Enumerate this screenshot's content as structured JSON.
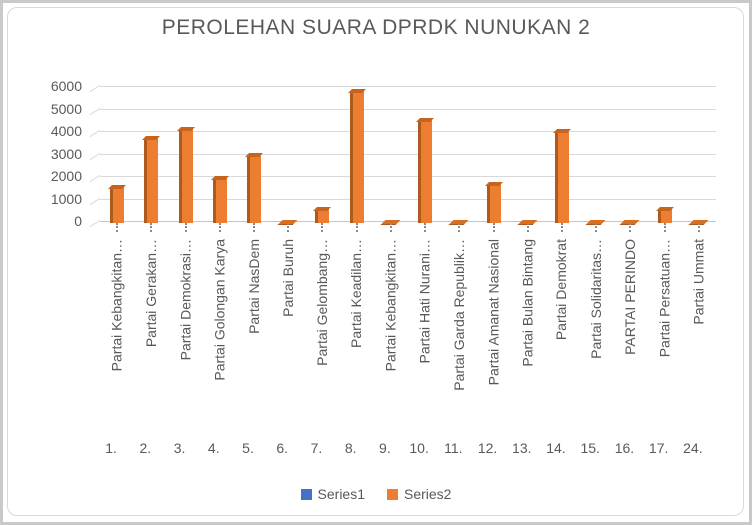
{
  "chart": {
    "title": "PEROLEHAN SUARA DPRDK NUNUKAN 2"
  },
  "chart_data": {
    "type": "bar",
    "title": "PEROLEHAN SUARA DPRDK NUNUKAN 2",
    "categories": [
      "Partai Kebangkitan…",
      "Partai Gerakan…",
      "Partai Demokrasi…",
      "Partai Golongan Karya",
      "Partai NasDem",
      "Partai Buruh",
      "Partai Gelombang…",
      "Partai Keadilan…",
      "Partai Kebangkitan…",
      "Partai Hati Nurani…",
      "Partai Garda Republik…",
      "Partai Amanat Nasional",
      "Partai Bulan Bintang",
      "Partai Demokrat",
      "Partai Solidaritas…",
      "PARTAI PERINDO",
      "Partai Persatuan…",
      "Partai Ummat"
    ],
    "category_numbers": [
      "1.",
      "2.",
      "3.",
      "4.",
      "5.",
      "6.",
      "7.",
      "8.",
      "9.",
      "10.",
      "11.",
      "12.",
      "13.",
      "14.",
      "15.",
      "16.",
      "17.",
      "24."
    ],
    "series": [
      {
        "name": "Series1",
        "color": "#4472C4"
      },
      {
        "name": "Series2",
        "color": "#ED7D31",
        "values": [
          1500,
          3700,
          4100,
          1900,
          2950,
          50,
          550,
          5800,
          60,
          4500,
          50,
          1650,
          60,
          4000,
          30,
          40,
          550,
          50
        ]
      }
    ],
    "ylabel": "",
    "xlabel": "",
    "ylim": [
      0,
      6000
    ],
    "yticks": [
      0,
      1000,
      2000,
      3000,
      4000,
      5000,
      6000
    ],
    "grid": true,
    "legend_position": "bottom",
    "colors": {
      "bar_face": "#ED7D31",
      "bar_edge": "#AE5A1E",
      "bar_cap": "#C4641E",
      "gridline": "#D9D9D9",
      "text": "#595959"
    }
  }
}
